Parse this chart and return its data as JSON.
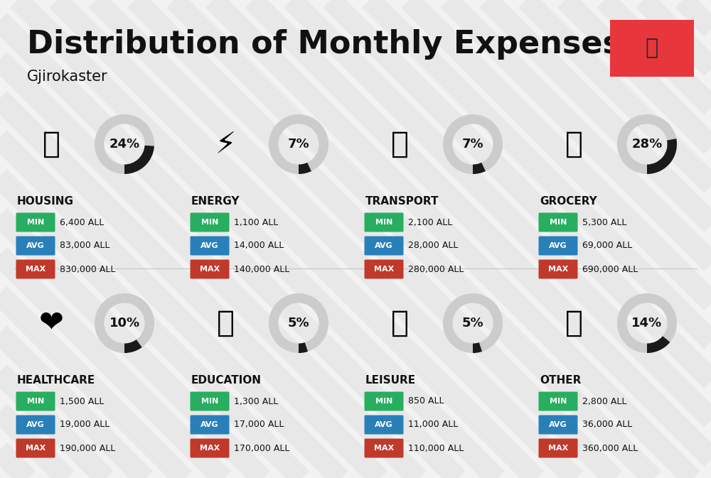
{
  "title": "Distribution of Monthly Expenses",
  "subtitle": "Gjirokaster",
  "background_color": "#f2f2f2",
  "stripe_color": "#e8e8e8",
  "categories": [
    {
      "name": "HOUSING",
      "percent": 24,
      "min_val": "6,400 ALL",
      "avg_val": "83,000 ALL",
      "max_val": "830,000 ALL",
      "icon": "🏢",
      "col": 0,
      "row": 0
    },
    {
      "name": "ENERGY",
      "percent": 7,
      "min_val": "1,100 ALL",
      "avg_val": "14,000 ALL",
      "max_val": "140,000 ALL",
      "icon": "⚡",
      "col": 1,
      "row": 0
    },
    {
      "name": "TRANSPORT",
      "percent": 7,
      "min_val": "2,100 ALL",
      "avg_val": "28,000 ALL",
      "max_val": "280,000 ALL",
      "icon": "🚌",
      "col": 2,
      "row": 0
    },
    {
      "name": "GROCERY",
      "percent": 28,
      "min_val": "5,300 ALL",
      "avg_val": "69,000 ALL",
      "max_val": "690,000 ALL",
      "icon": "🛒",
      "col": 3,
      "row": 0
    },
    {
      "name": "HEALTHCARE",
      "percent": 10,
      "min_val": "1,500 ALL",
      "avg_val": "19,000 ALL",
      "max_val": "190,000 ALL",
      "icon": "❤️",
      "col": 0,
      "row": 1
    },
    {
      "name": "EDUCATION",
      "percent": 5,
      "min_val": "1,300 ALL",
      "avg_val": "17,000 ALL",
      "max_val": "170,000 ALL",
      "icon": "🎓",
      "col": 1,
      "row": 1
    },
    {
      "name": "LEISURE",
      "percent": 5,
      "min_val": "850 ALL",
      "avg_val": "11,000 ALL",
      "max_val": "110,000 ALL",
      "icon": "🛍️",
      "col": 2,
      "row": 1
    },
    {
      "name": "OTHER",
      "percent": 14,
      "min_val": "2,800 ALL",
      "avg_val": "36,000 ALL",
      "max_val": "360,000 ALL",
      "icon": "👜",
      "col": 3,
      "row": 1
    }
  ],
  "min_color": "#27ae60",
  "avg_color": "#2980b9",
  "max_color": "#c0392b",
  "text_color": "#111111",
  "donut_bg": "#cccccc",
  "donut_fill": "#1a1a1a",
  "label_text_color": "#ffffff",
  "flag_color": "#e8363d",
  "title_fontsize": 32,
  "subtitle_fontsize": 15,
  "cat_name_fontsize": 11,
  "badge_fontsize": 8,
  "value_fontsize": 9,
  "donut_pct_fontsize": 13,
  "icon_fontsize": 30
}
